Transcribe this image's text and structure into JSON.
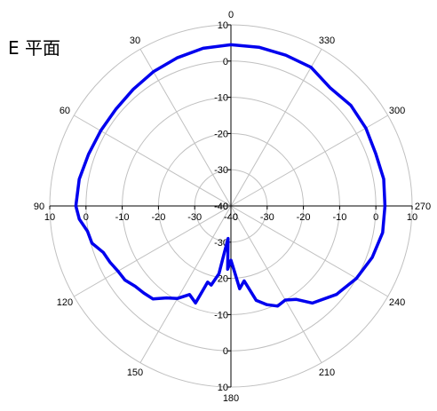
{
  "chart_data": {
    "type": "polar-line",
    "title": "E 平面",
    "r_min": -40,
    "r_max": 10,
    "r_ticks": [
      -40,
      -30,
      -20,
      -10,
      0,
      10
    ],
    "r_tick_labels": [
      "-40",
      "-30",
      "-20",
      "-10",
      "0",
      "10"
    ],
    "angle_step": 30,
    "angle_labels": [
      "0",
      "30",
      "60",
      "90",
      "120",
      "150",
      "180",
      "210",
      "240",
      "270",
      "300",
      "330"
    ],
    "angle_direction": "counterclockwise",
    "zero_at": "top",
    "grid": true,
    "series": [
      {
        "color": "#0000ee",
        "theta": [
          0,
          10,
          20,
          30,
          40,
          50,
          60,
          70,
          80,
          90,
          95,
          100,
          105,
          110,
          115,
          120,
          125,
          130,
          135,
          140,
          145,
          150,
          155,
          160,
          163,
          166,
          170,
          172,
          175,
          177,
          180,
          183,
          186,
          190,
          195,
          200,
          205,
          210,
          215,
          220,
          230,
          240,
          250,
          260,
          270,
          280,
          290,
          300,
          310,
          320,
          330,
          340,
          350,
          360
        ],
        "r": [
          4.5,
          4.2,
          3.5,
          2.8,
          2.0,
          1.5,
          1.5,
          1.8,
          2.5,
          2.8,
          2.0,
          0.2,
          -0.3,
          -2.5,
          -3.2,
          -4.0,
          -4.3,
          -5.5,
          -6.0,
          -6.5,
          -9.0,
          -10.5,
          -13.0,
          -11.5,
          -18.0,
          -17.5,
          -21.0,
          -27.0,
          -31.0,
          -22.5,
          -25.0,
          -22.0,
          -17.0,
          -19.0,
          -13.0,
          -11.0,
          -9.5,
          -10.0,
          -8.5,
          -5.0,
          -2.0,
          0.0,
          1.5,
          2.5,
          2.5,
          2.8,
          2.5,
          3.0,
          3.2,
          2.6,
          4.2,
          4.3,
          4.5,
          4.5
        ]
      }
    ]
  }
}
